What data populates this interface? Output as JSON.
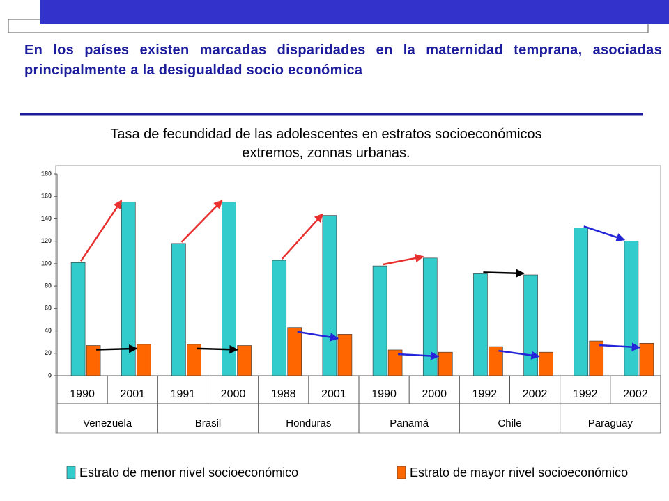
{
  "heading": "En los países existen marcadas disparidades en la maternidad temprana, asociadas principalmente a la desigualdad socio económica",
  "chart_data": {
    "type": "bar",
    "title": "Tasa de fecundidad de las adolescentes en estratos socioeconómicos extremos, zonnas urbanas.",
    "categories": [
      "1990",
      "2001",
      "1991",
      "2000",
      "1988",
      "2001",
      "1990",
      "2000",
      "1992",
      "2002",
      "1992",
      "2002"
    ],
    "groups": [
      "Venezuela",
      "Brasil",
      "Honduras",
      "Panamá",
      "Chile",
      "Paraguay"
    ],
    "series": [
      {
        "name": "Estrato de menor nivel socioeconómico",
        "color": "#33cccc",
        "values": [
          101,
          155,
          118,
          155,
          103,
          143,
          98,
          105,
          91,
          90,
          132,
          120
        ],
        "arrow_colors": [
          "#e8302f",
          "#e8302f",
          "#e8302f",
          "#e8302f",
          "#000000",
          "#2424d8"
        ]
      },
      {
        "name": "Estrato de mayor nivel socioeconómico",
        "color": "#ff6600",
        "values": [
          27,
          28,
          28,
          27,
          43,
          37,
          23,
          21,
          26,
          21,
          31,
          29
        ],
        "arrow_colors": [
          "#000000",
          "#000000",
          "#2424d8",
          "#2424d8",
          "#2424d8",
          "#2424d8"
        ]
      }
    ],
    "ylim": [
      0,
      180
    ],
    "yticks": [
      0,
      20,
      40,
      60,
      80,
      100,
      120,
      140,
      160,
      180
    ],
    "grid": false,
    "legend": "bottom"
  }
}
